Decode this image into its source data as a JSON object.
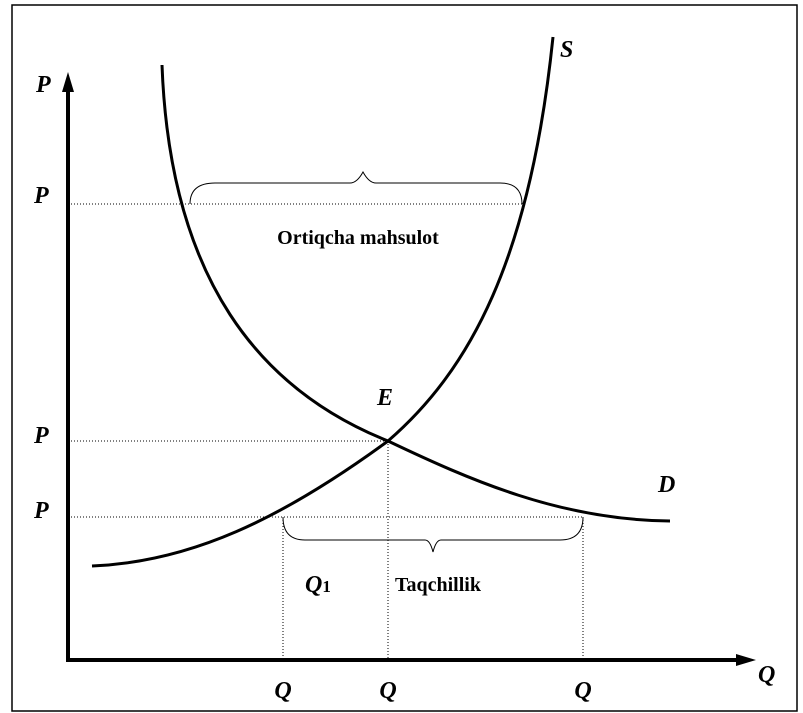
{
  "diagram": {
    "axis_y_label": "P",
    "axis_x_label": "Q",
    "supply_label": "S",
    "demand_label": "D",
    "equilibrium_label": "E",
    "surplus_label": "Ortiqcha mahsulot",
    "shortage_label": "Taqchillik",
    "q1_label": {
      "letter": "Q",
      "subscript": "1"
    },
    "price_labels": [
      "P",
      "P",
      "P"
    ],
    "quantity_labels": [
      "Q",
      "Q",
      "Q"
    ]
  }
}
